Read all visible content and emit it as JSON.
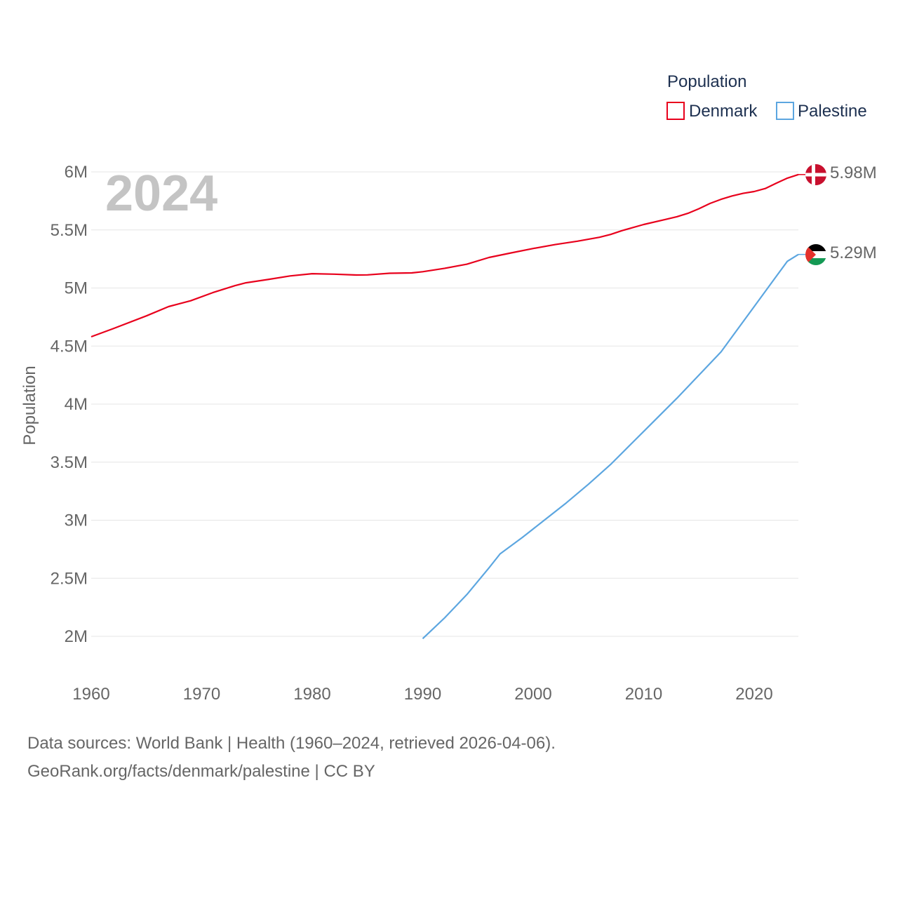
{
  "chart_data": {
    "type": "line",
    "title": "",
    "year_label": "2024",
    "legend_title": "Population",
    "ylabel": "Population",
    "xlabel": "",
    "xlim": [
      1960,
      2024
    ],
    "ylim": [
      1800000,
      6000000
    ],
    "x_ticks": [
      1960,
      1970,
      1980,
      1990,
      2000,
      2010,
      2020
    ],
    "x_tick_labels": [
      "1960",
      "1970",
      "1980",
      "1990",
      "2000",
      "2010",
      "2020"
    ],
    "y_ticks": [
      2000000,
      2500000,
      3000000,
      3500000,
      4000000,
      4500000,
      5000000,
      5500000,
      6000000
    ],
    "y_tick_labels": [
      "2M",
      "2.5M",
      "3M",
      "3.5M",
      "4M",
      "4.5M",
      "5M",
      "5.5M",
      "6M"
    ],
    "series": [
      {
        "name": "Denmark",
        "color": "#e8001c",
        "end_label": "5.98M",
        "flag": "denmark-flag",
        "points": [
          [
            1960,
            4580000
          ],
          [
            1962,
            4650000
          ],
          [
            1965,
            4760000
          ],
          [
            1967,
            4840000
          ],
          [
            1969,
            4890000
          ],
          [
            1971,
            4960000
          ],
          [
            1973,
            5020000
          ],
          [
            1974,
            5045000
          ],
          [
            1976,
            5073000
          ],
          [
            1978,
            5104000
          ],
          [
            1980,
            5123000
          ],
          [
            1982,
            5119000
          ],
          [
            1984,
            5112000
          ],
          [
            1985,
            5113000
          ],
          [
            1987,
            5127000
          ],
          [
            1989,
            5130000
          ],
          [
            1990,
            5140000
          ],
          [
            1992,
            5170000
          ],
          [
            1994,
            5205000
          ],
          [
            1996,
            5263000
          ],
          [
            1998,
            5302000
          ],
          [
            2000,
            5340000
          ],
          [
            2002,
            5374000
          ],
          [
            2004,
            5403000
          ],
          [
            2006,
            5437000
          ],
          [
            2007,
            5461000
          ],
          [
            2008,
            5493000
          ],
          [
            2010,
            5547000
          ],
          [
            2012,
            5591000
          ],
          [
            2013,
            5614000
          ],
          [
            2014,
            5643000
          ],
          [
            2015,
            5683000
          ],
          [
            2016,
            5728000
          ],
          [
            2017,
            5764000
          ],
          [
            2018,
            5793000
          ],
          [
            2019,
            5815000
          ],
          [
            2020,
            5831000
          ],
          [
            2021,
            5857000
          ],
          [
            2022,
            5903000
          ],
          [
            2023,
            5946000
          ],
          [
            2024,
            5977000
          ]
        ]
      },
      {
        "name": "Palestine",
        "color": "#5ca6e0",
        "end_label": "5.29M",
        "flag": "palestine-flag",
        "points": [
          [
            1990,
            1980000
          ],
          [
            1992,
            2160000
          ],
          [
            1994,
            2360000
          ],
          [
            1996,
            2590000
          ],
          [
            1997,
            2710000
          ],
          [
            1999,
            2850000
          ],
          [
            2001,
            3000000
          ],
          [
            2003,
            3150000
          ],
          [
            2005,
            3310000
          ],
          [
            2007,
            3480000
          ],
          [
            2009,
            3670000
          ],
          [
            2011,
            3860000
          ],
          [
            2013,
            4050000
          ],
          [
            2015,
            4250000
          ],
          [
            2016,
            4350000
          ],
          [
            2017,
            4450000
          ],
          [
            2018,
            4580000
          ],
          [
            2020,
            4840000
          ],
          [
            2022,
            5100000
          ],
          [
            2023,
            5230000
          ],
          [
            2024,
            5289000
          ]
        ]
      }
    ],
    "source_line1": "Data sources: World Bank | Health (1960–2024, retrieved 2026-04-06).",
    "source_line2": "GeoRank.org/facts/denmark/palestine | CC BY"
  }
}
